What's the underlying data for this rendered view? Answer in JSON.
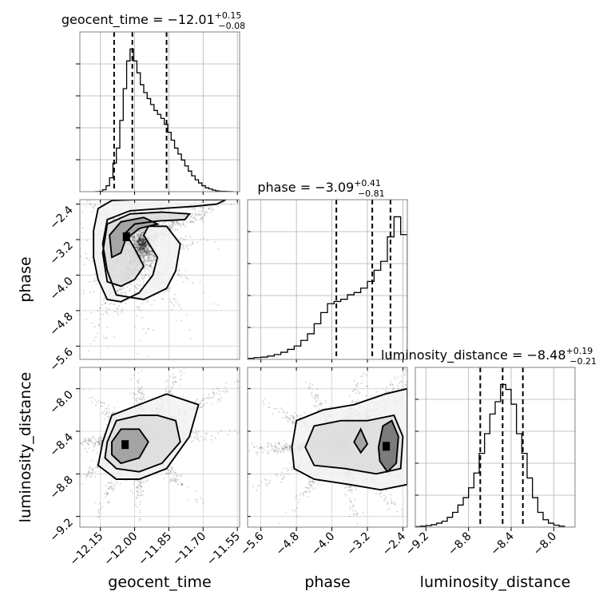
{
  "chart_data": {
    "type": "corner",
    "parameters": [
      {
        "name": "geocent_time",
        "axis_label": "geocent_time",
        "title": "geocent_time = −12.01",
        "title_plus": "+0.15",
        "title_minus": "−0.08",
        "range": [
          -12.24,
          -11.54
        ],
        "ticks": [
          -12.15,
          -12.0,
          -11.85,
          -11.7,
          -11.55
        ],
        "tick_labels": [
          "−12.15",
          "−12.00",
          "−11.85",
          "−11.70",
          "−11.55"
        ],
        "quantiles": [
          -12.09,
          -12.01,
          -11.86
        ],
        "hist": {
          "edges": [
            -12.17,
            -12.155,
            -12.14,
            -12.125,
            -12.11,
            -12.095,
            -12.08,
            -12.065,
            -12.05,
            -12.035,
            -12.02,
            -12.005,
            -11.99,
            -11.975,
            -11.96,
            -11.945,
            -11.93,
            -11.915,
            -11.9,
            -11.885,
            -11.87,
            -11.855,
            -11.84,
            -11.825,
            -11.81,
            -11.795,
            -11.78,
            -11.765,
            -11.75,
            -11.735,
            -11.72,
            -11.705,
            -11.69,
            -11.675,
            -11.66,
            -11.645,
            -11.63,
            -11.615,
            -11.6,
            -11.585,
            -11.57
          ],
          "counts": [
            0.2,
            1,
            5,
            15,
            35,
            72,
            110,
            180,
            260,
            330,
            360,
            330,
            300,
            270,
            250,
            235,
            220,
            205,
            195,
            185,
            170,
            150,
            130,
            110,
            95,
            80,
            65,
            52,
            40,
            30,
            22,
            15,
            10,
            7,
            4,
            2,
            1,
            1,
            0.5,
            0.2
          ]
        }
      },
      {
        "name": "phase",
        "axis_label": "phase",
        "title": "phase = −3.09",
        "title_plus": "+0.41",
        "title_minus": "−0.81",
        "range": [
          -5.9,
          -2.3
        ],
        "ticks": [
          -5.6,
          -4.8,
          -4.0,
          -3.2,
          -2.4
        ],
        "tick_labels": [
          "−5.6",
          "−4.8",
          "−4.0",
          "−3.2",
          "−2.4"
        ],
        "quantiles": [
          -3.9,
          -3.09,
          -2.68
        ],
        "hist": {
          "edges": [
            -5.9,
            -5.75,
            -5.6,
            -5.45,
            -5.3,
            -5.15,
            -5.0,
            -4.85,
            -4.7,
            -4.55,
            -4.4,
            -4.25,
            -4.1,
            -3.95,
            -3.8,
            -3.65,
            -3.5,
            -3.35,
            -3.2,
            -3.05,
            -2.9,
            -2.75,
            -2.6,
            -2.45,
            -2.3
          ],
          "counts": [
            5,
            8,
            10,
            15,
            22,
            32,
            45,
            60,
            85,
            115,
            160,
            210,
            250,
            260,
            270,
            290,
            300,
            320,
            350,
            400,
            440,
            550,
            640,
            560
          ]
        }
      },
      {
        "name": "luminosity_distance",
        "axis_label": "luminosity_distance",
        "title": "luminosity_distance = −8.48",
        "title_plus": "+0.19",
        "title_minus": "−0.21",
        "range": [
          -9.3,
          -7.8
        ],
        "ticks": [
          -9.2,
          -8.8,
          -8.4,
          -8.0
        ],
        "tick_labels": [
          "−9.2",
          "−8.8",
          "−8.4",
          "−8.0"
        ],
        "quantiles": [
          -8.69,
          -8.48,
          -8.29
        ],
        "hist": {
          "edges": [
            -9.3,
            -9.25,
            -9.2,
            -9.15,
            -9.1,
            -9.05,
            -9.0,
            -8.95,
            -8.9,
            -8.85,
            -8.8,
            -8.75,
            -8.7,
            -8.65,
            -8.6,
            -8.55,
            -8.5,
            -8.45,
            -8.4,
            -8.35,
            -8.3,
            -8.25,
            -8.2,
            -8.15,
            -8.1,
            -8.05,
            -8.0,
            -7.95,
            -7.9
          ],
          "counts": [
            1,
            2,
            3,
            5,
            8,
            12,
            20,
            30,
            45,
            60,
            80,
            110,
            150,
            190,
            230,
            255,
            290,
            280,
            250,
            190,
            150,
            100,
            60,
            30,
            15,
            8,
            4,
            2
          ]
        }
      }
    ],
    "pairs": [
      {
        "x": "geocent_time",
        "y": "phase",
        "contours": [
          [
            [
              -12.08,
              -4.45
            ],
            [
              -12.12,
              -3.9
            ],
            [
              -12.14,
              -3.3
            ],
            [
              -12.12,
              -2.75
            ],
            [
              -12.02,
              -2.55
            ],
            [
              -11.88,
              -2.5
            ],
            [
              -11.74,
              -2.45
            ],
            [
              -11.64,
              -2.4
            ],
            [
              -11.6,
              -2.3
            ],
            [
              -11.7,
              -2.3
            ],
            [
              -11.86,
              -2.3
            ],
            [
              -12.0,
              -2.3
            ],
            [
              -12.1,
              -2.32
            ],
            [
              -12.16,
              -2.5
            ],
            [
              -12.18,
              -3.0
            ],
            [
              -12.18,
              -3.6
            ],
            [
              -12.16,
              -4.1
            ],
            [
              -12.12,
              -4.55
            ],
            [
              -12.06,
              -4.6
            ],
            [
              -11.98,
              -4.4
            ],
            [
              -11.92,
              -4.0
            ],
            [
              -11.9,
              -3.6
            ],
            [
              -11.96,
              -3.1
            ],
            [
              -11.94,
              -2.9
            ],
            [
              -11.86,
              -2.9
            ],
            [
              -11.8,
              -3.3
            ],
            [
              -11.82,
              -3.9
            ],
            [
              -11.86,
              -4.3
            ],
            [
              -11.96,
              -4.55
            ],
            [
              -12.08,
              -4.45
            ]
          ],
          [
            [
              -12.12,
              -4.15
            ],
            [
              -12.14,
              -3.5
            ],
            [
              -12.12,
              -2.85
            ],
            [
              -12.02,
              -2.62
            ],
            [
              -11.88,
              -2.58
            ],
            [
              -11.76,
              -2.62
            ],
            [
              -11.78,
              -2.75
            ],
            [
              -11.9,
              -2.78
            ],
            [
              -12.0,
              -2.85
            ],
            [
              -12.04,
              -3.05
            ],
            [
              -12.0,
              -3.4
            ],
            [
              -11.96,
              -3.8
            ],
            [
              -12.0,
              -4.1
            ],
            [
              -12.06,
              -4.25
            ],
            [
              -12.12,
              -4.15
            ]
          ],
          [
            [
              -12.1,
              -3.6
            ],
            [
              -12.11,
              -3.1
            ],
            [
              -12.06,
              -2.8
            ],
            [
              -11.96,
              -2.7
            ],
            [
              -11.9,
              -2.85
            ],
            [
              -11.98,
              -2.95
            ],
            [
              -12.04,
              -3.2
            ],
            [
              -12.06,
              -3.5
            ],
            [
              -12.1,
              -3.6
            ]
          ]
        ]
      },
      {
        "x": "geocent_time",
        "y": "luminosity_distance",
        "contours": [
          [
            [
              -12.14,
              -8.5
            ],
            [
              -12.1,
              -8.25
            ],
            [
              -11.98,
              -8.15
            ],
            [
              -11.86,
              -8.05
            ],
            [
              -11.72,
              -8.15
            ],
            [
              -11.76,
              -8.45
            ],
            [
              -11.86,
              -8.75
            ],
            [
              -11.98,
              -8.85
            ],
            [
              -12.08,
              -8.85
            ],
            [
              -12.16,
              -8.72
            ],
            [
              -12.14,
              -8.5
            ]
          ],
          [
            [
              -12.12,
              -8.5
            ],
            [
              -12.08,
              -8.3
            ],
            [
              -11.98,
              -8.25
            ],
            [
              -11.9,
              -8.25
            ],
            [
              -11.82,
              -8.3
            ],
            [
              -11.8,
              -8.5
            ],
            [
              -11.88,
              -8.7
            ],
            [
              -11.98,
              -8.78
            ],
            [
              -12.08,
              -8.75
            ],
            [
              -12.13,
              -8.65
            ],
            [
              -12.12,
              -8.5
            ]
          ],
          [
            [
              -12.1,
              -8.5
            ],
            [
              -12.06,
              -8.38
            ],
            [
              -11.98,
              -8.38
            ],
            [
              -11.94,
              -8.5
            ],
            [
              -11.98,
              -8.65
            ],
            [
              -12.06,
              -8.7
            ],
            [
              -12.1,
              -8.62
            ],
            [
              -12.1,
              -8.5
            ]
          ]
        ]
      },
      {
        "x": "phase",
        "y": "luminosity_distance",
        "contours": [
          [
            [
              -4.9,
              -8.55
            ],
            [
              -4.8,
              -8.3
            ],
            [
              -4.2,
              -8.2
            ],
            [
              -3.5,
              -8.15
            ],
            [
              -2.8,
              -8.05
            ],
            [
              -2.3,
              -8.0
            ],
            [
              -2.3,
              -8.9
            ],
            [
              -2.9,
              -8.95
            ],
            [
              -3.6,
              -8.9
            ],
            [
              -4.4,
              -8.85
            ],
            [
              -4.85,
              -8.75
            ],
            [
              -4.9,
              -8.55
            ]
          ],
          [
            [
              -4.6,
              -8.55
            ],
            [
              -4.4,
              -8.35
            ],
            [
              -3.8,
              -8.3
            ],
            [
              -3.2,
              -8.3
            ],
            [
              -2.6,
              -8.25
            ],
            [
              -2.4,
              -8.45
            ],
            [
              -2.45,
              -8.75
            ],
            [
              -3.0,
              -8.8
            ],
            [
              -3.7,
              -8.75
            ],
            [
              -4.4,
              -8.72
            ],
            [
              -4.6,
              -8.55
            ]
          ],
          [
            [
              -3.5,
              -8.5
            ],
            [
              -3.35,
              -8.38
            ],
            [
              -3.2,
              -8.52
            ],
            [
              -3.35,
              -8.6
            ],
            [
              -3.5,
              -8.5
            ]
          ],
          [
            [
              -2.95,
              -8.55
            ],
            [
              -2.85,
              -8.35
            ],
            [
              -2.65,
              -8.3
            ],
            [
              -2.5,
              -8.45
            ],
            [
              -2.55,
              -8.7
            ],
            [
              -2.75,
              -8.78
            ],
            [
              -2.92,
              -8.68
            ],
            [
              -2.95,
              -8.55
            ]
          ]
        ]
      }
    ],
    "grid": true
  }
}
